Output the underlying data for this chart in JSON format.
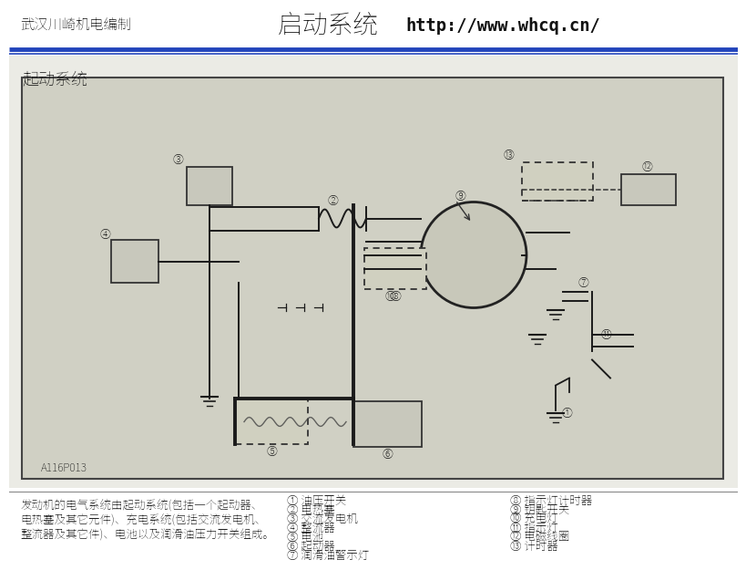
{
  "title_left": "武汉川崎机电编制",
  "title_center": "启动系统",
  "title_url": "http://www.whcq.cn/",
  "header_line_color1": "#1a3aaa",
  "header_line_color2": "#3355cc",
  "diagram_title": "起动系统",
  "code": "A116P013",
  "description_lines": [
    "发动机的电气系统由起动系统(包括一个起动器、",
    "电热塞及其它元件)、充电系统(包括交流发电机、",
    "整流器及其它件)、电池以及润滑油压力开关组成。"
  ],
  "parts_col1": [
    "① 油压开关",
    "② 电热塞",
    "③ 交流发电机",
    "④ 整流器",
    "⑤ 电池",
    "⑥ 起动器",
    "⑦ 润滑油警示灯"
  ],
  "parts_col2": [
    "⑧ 指示灯计时器",
    "⑨ 钥匙开关",
    "⑩ 充电灯",
    "⑪ 指示灯",
    "⑫ 电磁线圈",
    "⑬ 计时器"
  ],
  "bg_outer": "#f5f5f0",
  "bg_diagram": "#d8d8cc",
  "bg_white": "#ffffff",
  "line_color": "#1a1a1a"
}
